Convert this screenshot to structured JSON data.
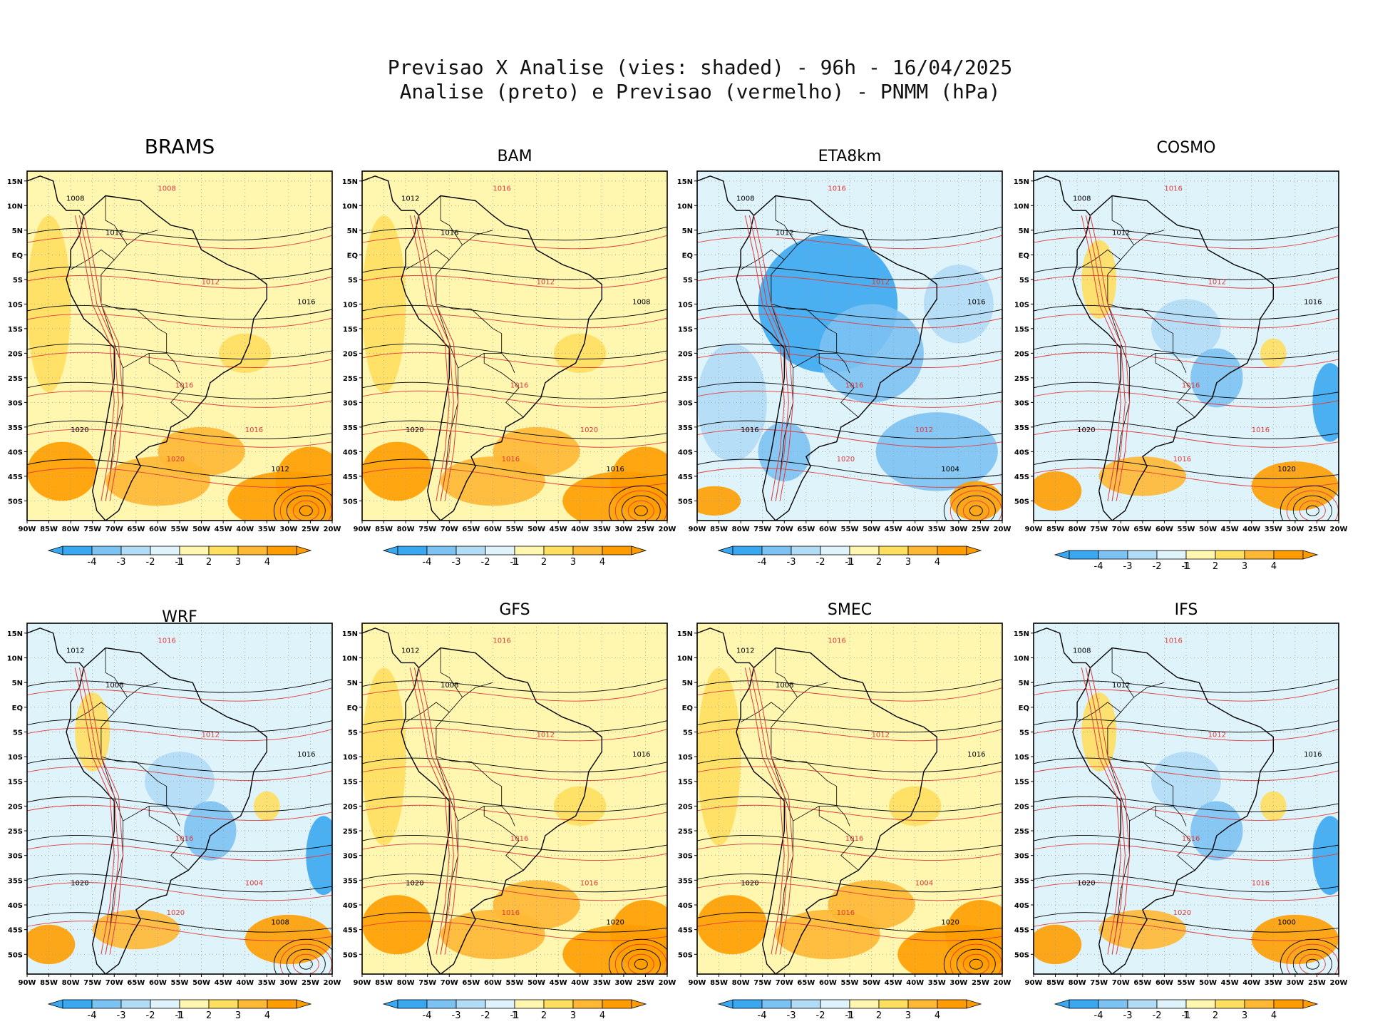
{
  "header": {
    "title_line1": "Previsao X Analise (vies: shaded) - 96h - 16/04/2025",
    "title_line2": "Analise (preto) e Previsao (vermelho) - PNMM (hPa)"
  },
  "axes": {
    "lon_labels": [
      "90W",
      "85W",
      "80W",
      "75W",
      "70W",
      "65W",
      "60W",
      "55W",
      "50W",
      "45W",
      "40W",
      "35W",
      "30W",
      "25W",
      "20W"
    ],
    "lat_labels": [
      "15N",
      "10N",
      "5N",
      "EQ",
      "5S",
      "10S",
      "15S",
      "20S",
      "25S",
      "30S",
      "35S",
      "40S",
      "45S",
      "50S"
    ]
  },
  "colorbar": {
    "labels": [
      "-4",
      "-3",
      "-2",
      "-1",
      "1",
      "2",
      "3",
      "4"
    ],
    "colors": [
      "#3aa8f0",
      "#7cc2f3",
      "#b2dcf6",
      "#dff3fb",
      "#ffffff",
      "#fff6b0",
      "#ffdf60",
      "#ffb833",
      "#ff9d00"
    ]
  },
  "colors": {
    "analysis_contour": "#000000",
    "forecast_contour": "#e03a3a",
    "grid": "#999999"
  },
  "panels": [
    {
      "model": "BRAMS",
      "bias": "warm",
      "isobars": [
        "1008",
        "1008",
        "1012",
        "1012",
        "1016",
        "1016",
        "1020",
        "1020",
        "1012",
        "1016"
      ]
    },
    {
      "model": "BAM",
      "bias": "warm",
      "isobars": [
        "1012",
        "1016",
        "1016",
        "1012",
        "1008",
        "1016",
        "1020",
        "1016",
        "1016",
        "1020"
      ]
    },
    {
      "model": "ETA8km",
      "bias": "cold",
      "isobars": [
        "1008",
        "1016",
        "1012",
        "1012",
        "1016",
        "1016",
        "1016",
        "1020",
        "1004",
        "1012"
      ]
    },
    {
      "model": "COSMO",
      "bias": "mixed",
      "isobars": [
        "1008",
        "1016",
        "1012",
        "1012",
        "1016",
        "1016",
        "1020",
        "1016",
        "1020",
        "1016"
      ]
    },
    {
      "model": "WRF",
      "bias": "mixed",
      "isobars": [
        "1012",
        "1016",
        "1008",
        "1012",
        "1016",
        "1016",
        "1020",
        "1020",
        "1008",
        "1004"
      ]
    },
    {
      "model": "GFS",
      "bias": "warm",
      "isobars": [
        "1012",
        "1016",
        "1008",
        "1012",
        "1016",
        "1016",
        "1020",
        "1016",
        "1020",
        "1016"
      ]
    },
    {
      "model": "SMEC",
      "bias": "warm",
      "isobars": [
        "1012",
        "1016",
        "1008",
        "1012",
        "1016",
        "1016",
        "1020",
        "1016",
        "1020",
        "1004"
      ]
    },
    {
      "model": "IFS",
      "bias": "mixed",
      "isobars": [
        "1008",
        "1016",
        "1012",
        "1012",
        "1016",
        "1016",
        "1020",
        "1020",
        "1000",
        "1016"
      ]
    }
  ]
}
